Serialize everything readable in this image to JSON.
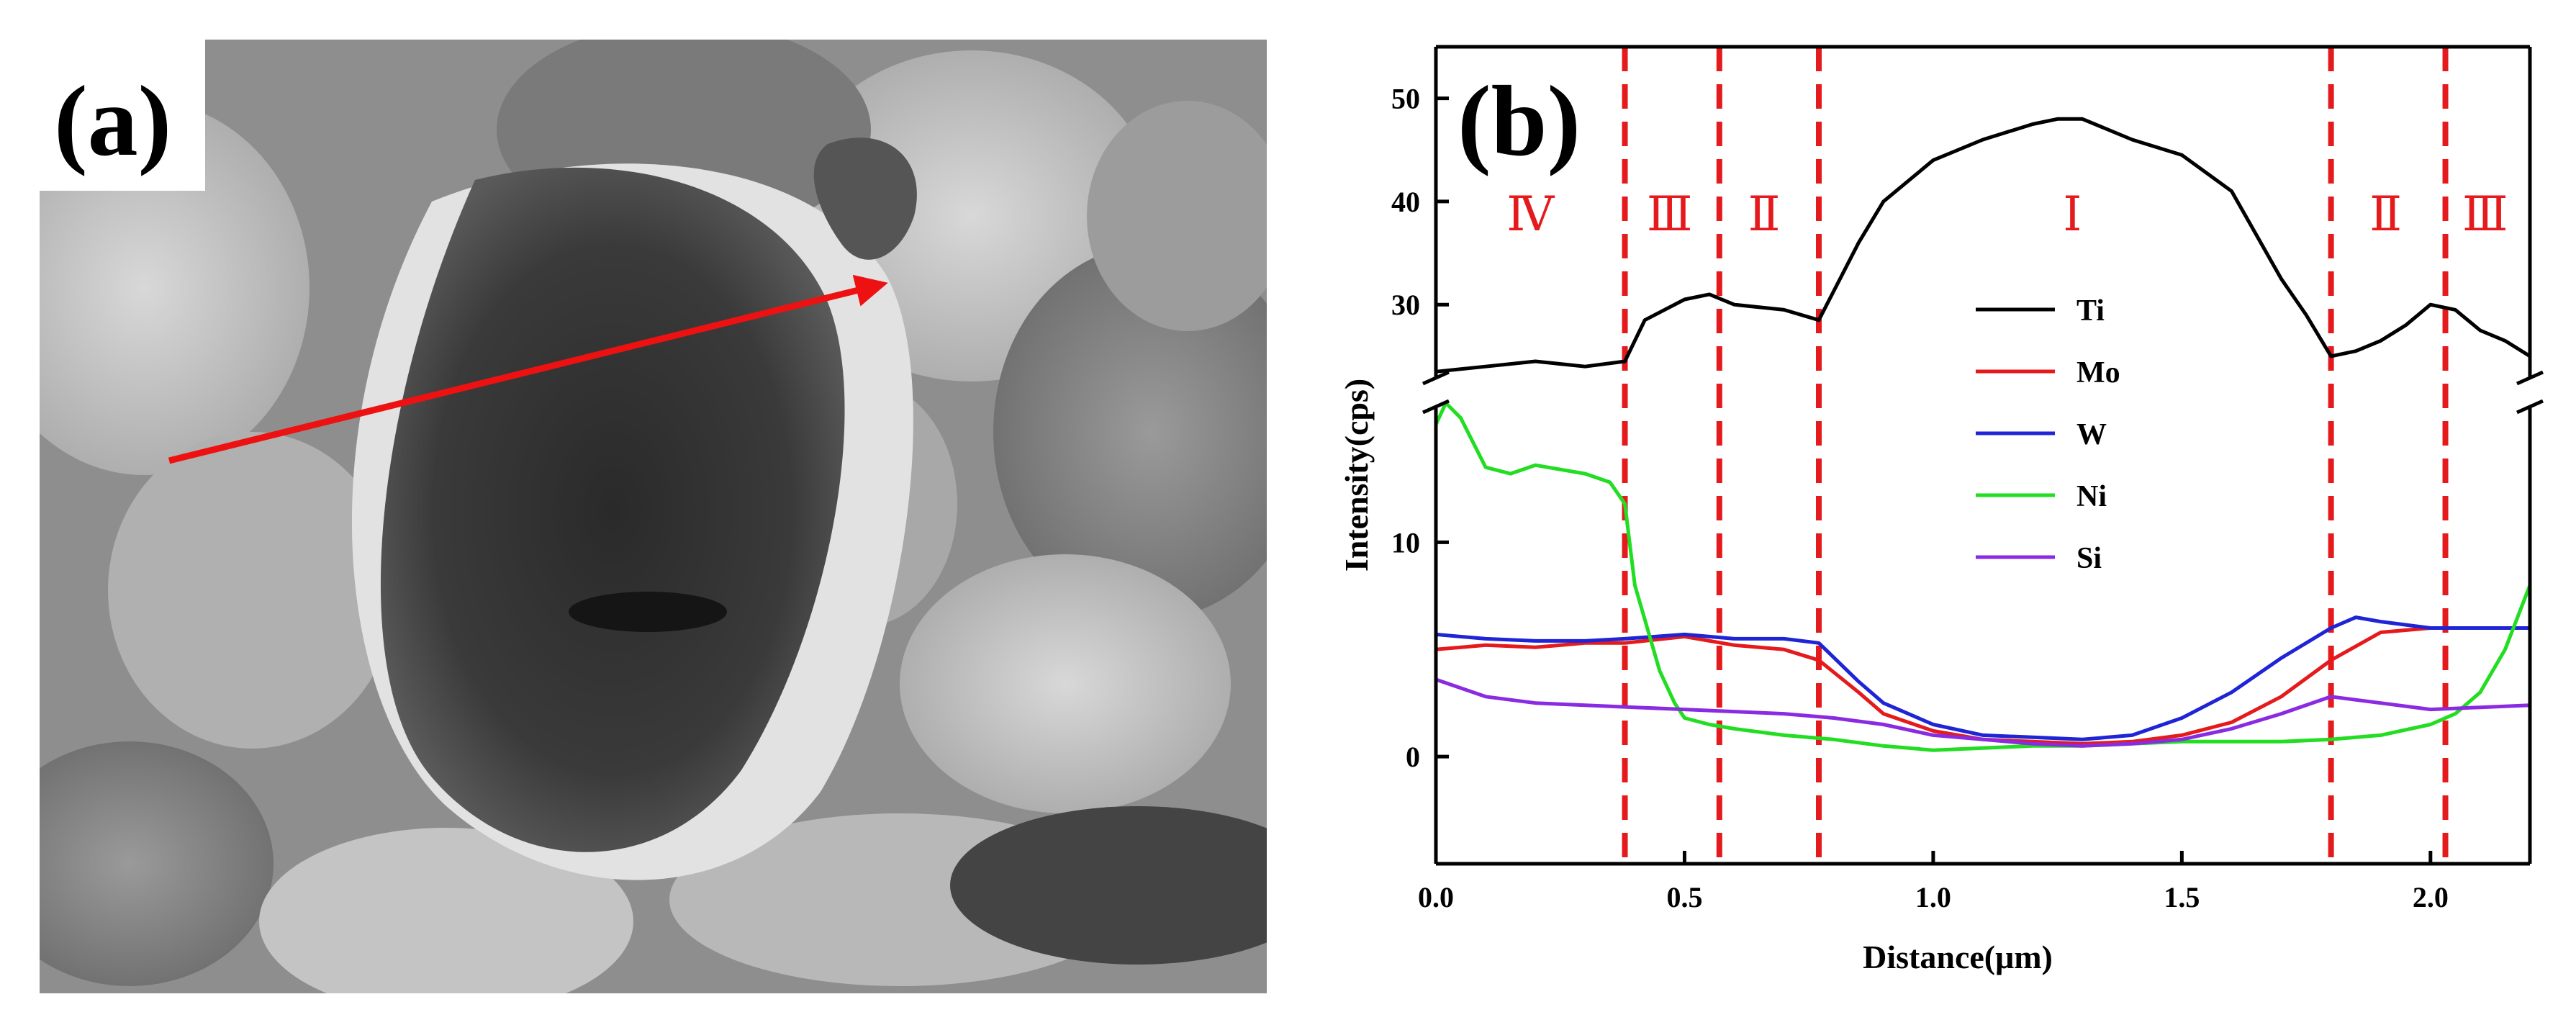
{
  "panel_a": {
    "label": "(a)",
    "description_free": true,
    "arrow_color": "#ee1111"
  },
  "chart_data": {
    "type": "line",
    "panel_label": "(b)",
    "title": "",
    "xlabel": "Distance(μm)",
    "ylabel": "Intensity(cps)",
    "xlim": [
      0.0,
      2.2
    ],
    "x_ticks": [
      0.0,
      0.5,
      1.0,
      1.5,
      2.0
    ],
    "x_tick_labels": [
      "0.0",
      "0.5",
      "1.0",
      "1.5",
      "2.0"
    ],
    "y_lower_range": [
      -5,
      17
    ],
    "y_upper_range": [
      21.5,
      55
    ],
    "y_ticks_lower": [
      0,
      10
    ],
    "y_ticks_lower_labels": [
      "0",
      "10"
    ],
    "y_ticks_upper": [
      30,
      40,
      50
    ],
    "y_ticks_upper_labels": [
      "30",
      "40",
      "50"
    ],
    "axis_break": true,
    "legend_position": "center",
    "boundaries": [
      0.38,
      0.57,
      0.77,
      1.8,
      2.03
    ],
    "boundary_color": "#e41a1c",
    "regions": [
      {
        "label": "Ⅳ",
        "x": 0.19
      },
      {
        "label": "Ⅲ",
        "x": 0.47
      },
      {
        "label": "Ⅱ",
        "x": 0.66
      },
      {
        "label": "Ⅰ",
        "x": 1.28
      },
      {
        "label": "Ⅱ",
        "x": 1.91
      },
      {
        "label": "Ⅲ",
        "x": 2.11
      }
    ],
    "series": [
      {
        "name": "Ti",
        "color": "#000000",
        "x": [
          0.0,
          0.1,
          0.2,
          0.3,
          0.38,
          0.42,
          0.5,
          0.55,
          0.6,
          0.7,
          0.77,
          0.85,
          0.9,
          1.0,
          1.1,
          1.2,
          1.25,
          1.3,
          1.4,
          1.5,
          1.6,
          1.7,
          1.75,
          1.8,
          1.85,
          1.9,
          1.95,
          2.0,
          2.05,
          2.1,
          2.15,
          2.2
        ],
        "y": [
          23.5,
          24.0,
          24.5,
          24.0,
          24.5,
          28.5,
          30.5,
          31.0,
          30.0,
          29.5,
          28.5,
          36.0,
          40.0,
          44.0,
          46.0,
          47.5,
          48.0,
          48.0,
          46.0,
          44.5,
          41.0,
          32.5,
          29.0,
          25.0,
          25.5,
          26.5,
          28.0,
          30.0,
          29.5,
          27.5,
          26.5,
          25.0
        ]
      },
      {
        "name": "Mo",
        "color": "#e41a1c",
        "x": [
          0.0,
          0.1,
          0.2,
          0.3,
          0.38,
          0.5,
          0.6,
          0.7,
          0.77,
          0.85,
          0.9,
          1.0,
          1.1,
          1.2,
          1.3,
          1.4,
          1.5,
          1.6,
          1.7,
          1.8,
          1.9,
          2.0,
          2.1,
          2.2
        ],
        "y": [
          5.0,
          5.2,
          5.1,
          5.3,
          5.3,
          5.6,
          5.2,
          5.0,
          4.5,
          3.0,
          2.0,
          1.2,
          0.8,
          0.7,
          0.6,
          0.7,
          1.0,
          1.6,
          2.8,
          4.5,
          5.8,
          6.0,
          6.0,
          6.0
        ]
      },
      {
        "name": "W",
        "color": "#1f24d6",
        "x": [
          0.0,
          0.1,
          0.2,
          0.3,
          0.38,
          0.5,
          0.6,
          0.7,
          0.77,
          0.85,
          0.9,
          1.0,
          1.1,
          1.2,
          1.3,
          1.4,
          1.5,
          1.6,
          1.7,
          1.8,
          1.85,
          1.9,
          2.0,
          2.1,
          2.2
        ],
        "y": [
          5.7,
          5.5,
          5.4,
          5.4,
          5.5,
          5.7,
          5.5,
          5.5,
          5.3,
          3.5,
          2.5,
          1.5,
          1.0,
          0.9,
          0.8,
          1.0,
          1.8,
          3.0,
          4.6,
          6.0,
          6.5,
          6.3,
          6.0,
          6.0,
          6.0
        ]
      },
      {
        "name": "Ni",
        "color": "#22dd22",
        "x": [
          0.0,
          0.02,
          0.05,
          0.1,
          0.15,
          0.2,
          0.25,
          0.3,
          0.35,
          0.38,
          0.4,
          0.45,
          0.48,
          0.5,
          0.55,
          0.6,
          0.7,
          0.8,
          0.9,
          1.0,
          1.1,
          1.2,
          1.3,
          1.4,
          1.5,
          1.6,
          1.7,
          1.8,
          1.9,
          2.0,
          2.05,
          2.1,
          2.15,
          2.2
        ],
        "y": [
          15.5,
          16.5,
          15.8,
          13.5,
          13.2,
          13.6,
          13.4,
          13.2,
          12.8,
          11.8,
          8.0,
          4.0,
          2.5,
          1.8,
          1.5,
          1.3,
          1.0,
          0.8,
          0.5,
          0.3,
          0.4,
          0.5,
          0.5,
          0.6,
          0.7,
          0.7,
          0.7,
          0.8,
          1.0,
          1.5,
          2.0,
          3.0,
          5.0,
          8.0
        ]
      },
      {
        "name": "Si",
        "color": "#8a2be2",
        "x": [
          0.0,
          0.05,
          0.1,
          0.2,
          0.3,
          0.4,
          0.5,
          0.6,
          0.7,
          0.8,
          0.9,
          1.0,
          1.1,
          1.2,
          1.3,
          1.4,
          1.5,
          1.6,
          1.7,
          1.8,
          1.9,
          2.0,
          2.1,
          2.2
        ],
        "y": [
          3.6,
          3.2,
          2.8,
          2.5,
          2.4,
          2.3,
          2.2,
          2.1,
          2.0,
          1.8,
          1.5,
          1.0,
          0.8,
          0.6,
          0.5,
          0.6,
          0.8,
          1.3,
          2.0,
          2.8,
          2.5,
          2.2,
          2.3,
          2.4
        ]
      }
    ]
  }
}
